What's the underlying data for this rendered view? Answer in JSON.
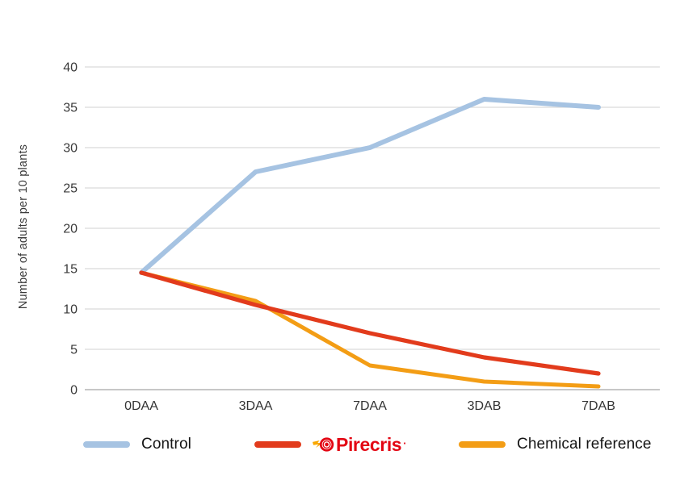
{
  "chart_data": {
    "type": "line",
    "categories": [
      "0DAA",
      "3DAA",
      "7DAA",
      "3DAB",
      "7DAB"
    ],
    "series": [
      {
        "name": "Control",
        "color": "#a6c3e2",
        "values": [
          14.5,
          27,
          30,
          36,
          35
        ]
      },
      {
        "name": "Pirecris",
        "color": "#e23b1c",
        "values": [
          14.5,
          10.5,
          7,
          4,
          2
        ]
      },
      {
        "name": "Chemical reference",
        "color": "#f39d15",
        "values": [
          14.5,
          11,
          3,
          1,
          0.4
        ]
      }
    ],
    "title": "",
    "xlabel": "",
    "ylabel": "Number of adults per 10 plants",
    "ylim": [
      0,
      40
    ],
    "yticks": [
      0,
      5,
      10,
      15,
      20,
      25,
      30,
      35,
      40
    ],
    "grid": "horizontal-only",
    "legend_position": "bottom"
  },
  "legend": {
    "pirecris_tm_mark": "·"
  },
  "icons": {
    "pirecris_logo_icon": "bullseye-with-spark-icon"
  },
  "colors": {
    "control_line": "#a6c3e2",
    "pirecris_line": "#e23b1c",
    "chemical_line": "#f39d15",
    "gridline": "#d9d9d9",
    "zero_axis_line": "#c7c7c7",
    "tick_label": "#3b3b3b",
    "legend_text": "#151515",
    "pirecris_brand_red": "#e30613",
    "pirecris_spark_yellow": "#f9a800"
  }
}
